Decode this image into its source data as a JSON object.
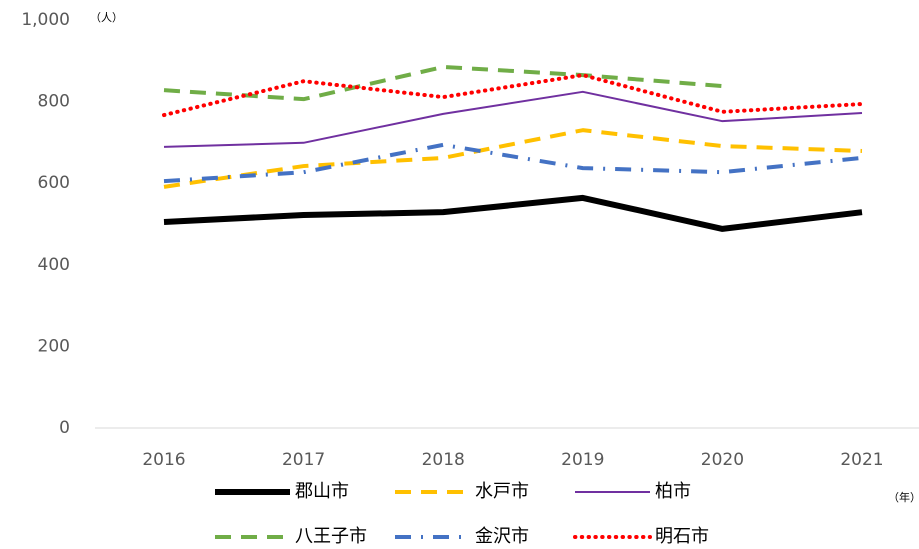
{
  "chart_data": {
    "type": "line",
    "y_unit": "（人）",
    "x_unit": "（年）",
    "categories": [
      "2016",
      "2017",
      "2018",
      "2019",
      "2020",
      "2021"
    ],
    "ylim": [
      0,
      1000
    ],
    "yticks": [
      0,
      200,
      400,
      600,
      800,
      {
        "value": 1000,
        "label": "1,000"
      }
    ],
    "grid": false,
    "series": [
      {
        "name": "郡山市",
        "color": "#000000",
        "dash": "solid",
        "width": 6,
        "values": [
          505,
          522,
          529,
          564,
          488,
          529
        ]
      },
      {
        "name": "水戸市",
        "color": "#ffc000",
        "dash": "dashed",
        "width": 4,
        "values": [
          591,
          642,
          662,
          730,
          691,
          679
        ]
      },
      {
        "name": "柏市",
        "color": "#7030a0",
        "dash": "solid",
        "width": 2,
        "values": [
          689,
          699,
          770,
          824,
          752,
          772
        ]
      },
      {
        "name": "八王子市",
        "color": "#70ad47",
        "dash": "dashed",
        "width": 4,
        "values": [
          828,
          806,
          885,
          865,
          838,
          null
        ]
      },
      {
        "name": "金沢市",
        "color": "#4472c4",
        "dash": "dashdot",
        "width": 4,
        "values": [
          605,
          627,
          694,
          637,
          627,
          662
        ]
      },
      {
        "name": "明石市",
        "color": "#ff0000",
        "dash": "dotted",
        "width": 4,
        "values": [
          767,
          850,
          811,
          865,
          775,
          794
        ]
      }
    ]
  }
}
